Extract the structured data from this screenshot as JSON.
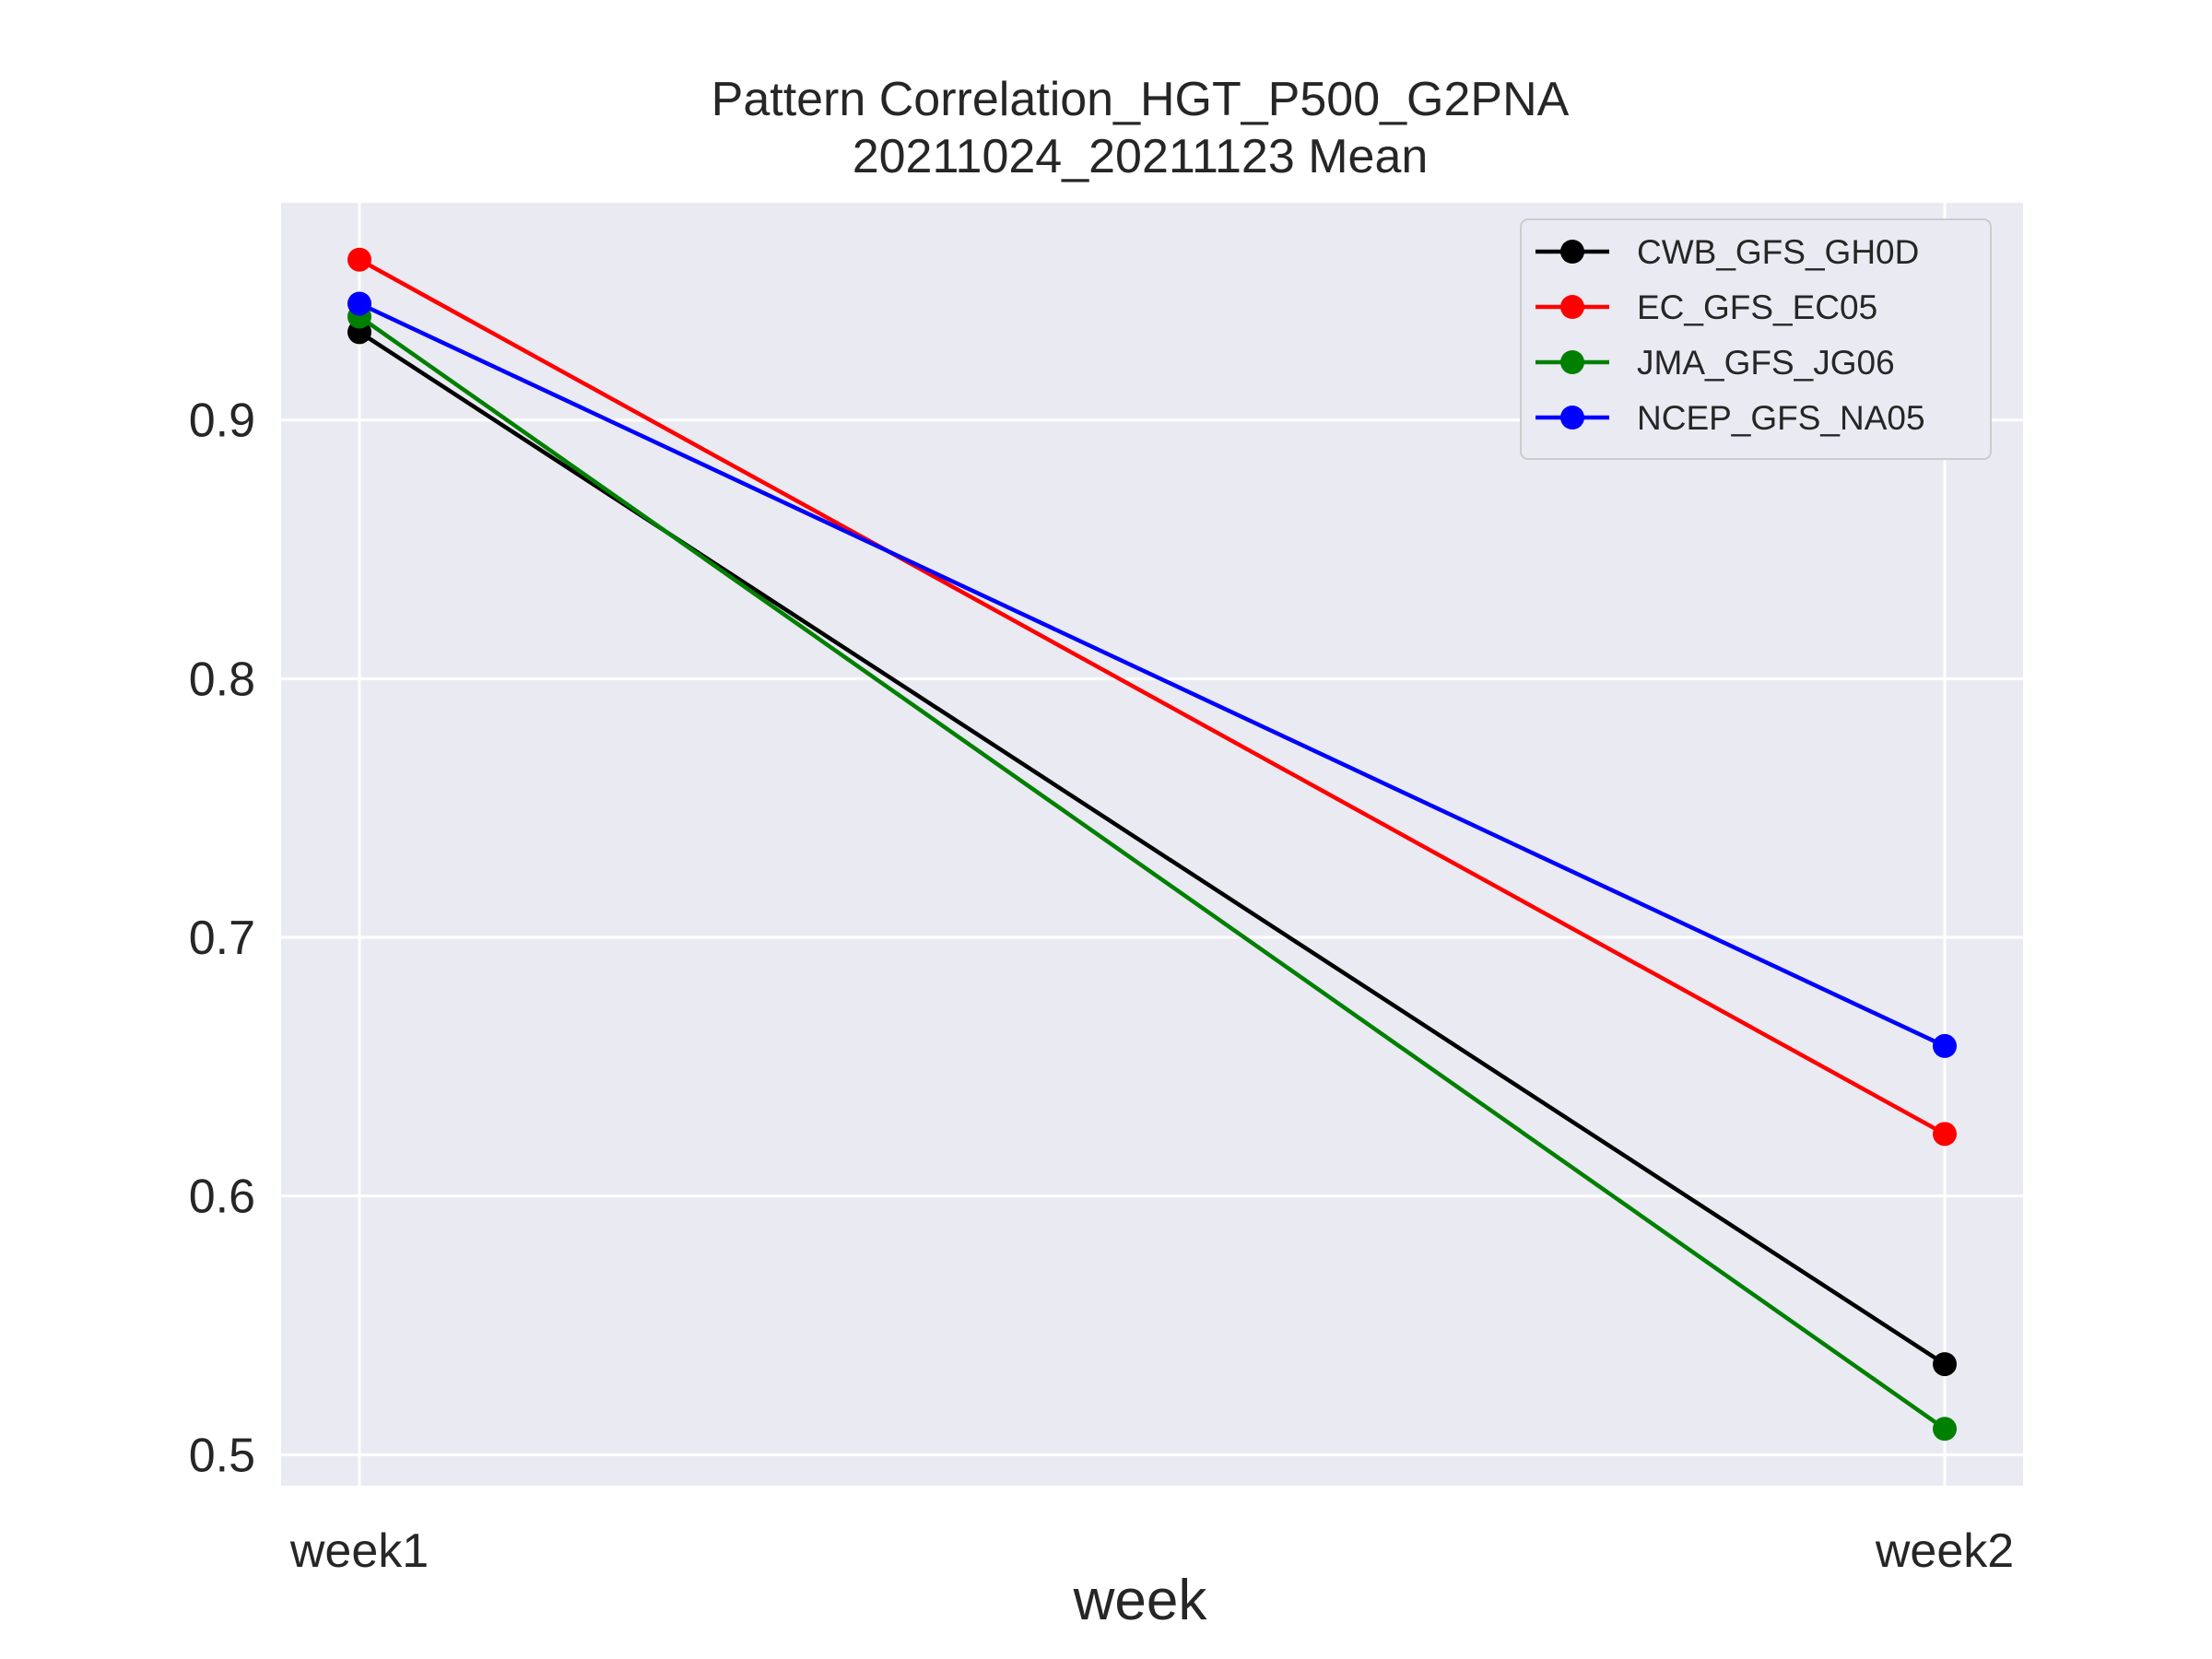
{
  "chart_data": {
    "type": "line",
    "title": "Pattern Correlation_HGT_P500_G2PNA",
    "subtitle": "20211024_20211123 Mean",
    "xlabel": "week",
    "ylabel": "",
    "categories": [
      "week1",
      "week2"
    ],
    "ylim": [
      0.488,
      0.984
    ],
    "yticks": [
      0.5,
      0.6,
      0.7,
      0.8,
      0.9
    ],
    "ytick_labels": [
      "0.5",
      "0.6",
      "0.7",
      "0.8",
      "0.9"
    ],
    "grid": true,
    "legend_position": "top-right",
    "series": [
      {
        "name": "CWB_GFS_GH0D",
        "color": "#000000",
        "values": [
          0.934,
          0.535
        ]
      },
      {
        "name": "EC_GFS_EC05",
        "color": "#ff0000",
        "values": [
          0.962,
          0.624
        ]
      },
      {
        "name": "JMA_GFS_JG06",
        "color": "#008000",
        "values": [
          0.94,
          0.51
        ]
      },
      {
        "name": "NCEP_GFS_NA05",
        "color": "#0000ff",
        "values": [
          0.945,
          0.658
        ]
      }
    ]
  }
}
